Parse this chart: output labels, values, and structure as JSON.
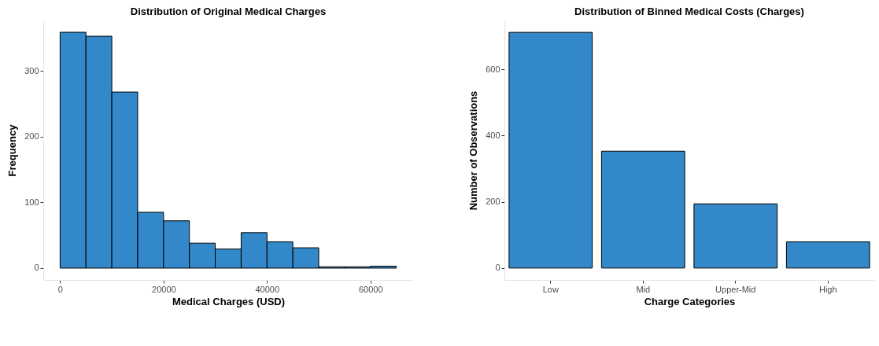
{
  "chart_data": [
    {
      "type": "histogram",
      "title": "Distribution of Original Medical Charges",
      "xlabel": "Medical Charges (USD)",
      "ylabel": "Frequency",
      "color": "#3288c8",
      "bins": [
        0,
        5000,
        10000,
        15000,
        20000,
        25000,
        30000,
        35000,
        40000,
        45000,
        50000,
        55000,
        60000,
        65000
      ],
      "values": [
        359,
        353,
        268,
        85,
        72,
        38,
        29,
        54,
        40,
        31,
        2,
        2,
        3
      ],
      "xlim": [
        -3250,
        68250
      ],
      "xticks": [
        0,
        20000,
        40000,
        60000
      ],
      "ylim": [
        -18,
        377
      ],
      "yticks": [
        0,
        100,
        200,
        300
      ],
      "grid": false
    },
    {
      "type": "bar",
      "title": "Distribution of Binned Medical Costs (Charges)",
      "xlabel": "Charge Categories",
      "ylabel": "Number of Observations",
      "color": "#3288c8",
      "categories": [
        "Low",
        "Mid",
        "Upper-Mid",
        "High"
      ],
      "values": [
        712,
        353,
        194,
        79
      ],
      "ylim": [
        -36,
        748
      ],
      "yticks": [
        0,
        200,
        400,
        600
      ],
      "grid": false
    }
  ]
}
